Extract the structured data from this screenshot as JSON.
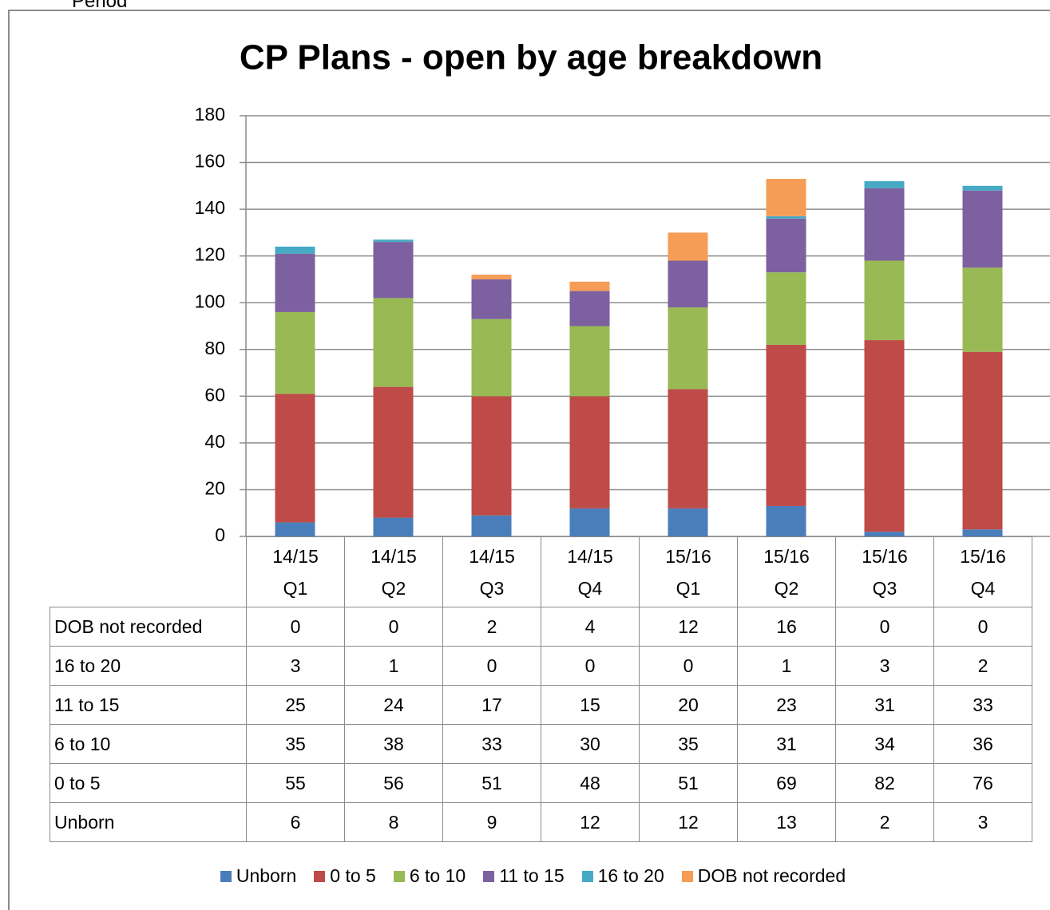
{
  "page_label": "Period",
  "chart_data": {
    "type": "stacked_bar",
    "title": "CP Plans - open by age breakdown",
    "categories": [
      "14/15\nQ1",
      "14/15\nQ2",
      "14/15\nQ3",
      "14/15\nQ4",
      "15/16\nQ1",
      "15/16\nQ2",
      "15/16\nQ3",
      "15/16\nQ4"
    ],
    "series": [
      {
        "name": "Unborn",
        "color": "#4a7ebb",
        "values": [
          6,
          8,
          9,
          12,
          12,
          13,
          2,
          3
        ]
      },
      {
        "name": "0 to 5",
        "color": "#be4b48",
        "values": [
          55,
          56,
          51,
          48,
          51,
          69,
          82,
          76
        ]
      },
      {
        "name": "6 to 10",
        "color": "#98b954",
        "values": [
          35,
          38,
          33,
          30,
          35,
          31,
          34,
          36
        ]
      },
      {
        "name": "11 to 15",
        "color": "#7d60a0",
        "values": [
          25,
          24,
          17,
          15,
          20,
          23,
          31,
          33
        ]
      },
      {
        "name": "16 to 20",
        "color": "#46aac5",
        "values": [
          3,
          1,
          0,
          0,
          0,
          1,
          3,
          2
        ]
      },
      {
        "name": "DOB not recorded",
        "color": "#f59d56",
        "values": [
          0,
          0,
          2,
          4,
          12,
          16,
          0,
          0
        ]
      }
    ],
    "ylim": [
      0,
      180
    ],
    "yticks": [
      0,
      20,
      40,
      60,
      80,
      100,
      120,
      140,
      160,
      180
    ],
    "grid": true,
    "data_table": true,
    "legend": "bottom"
  }
}
